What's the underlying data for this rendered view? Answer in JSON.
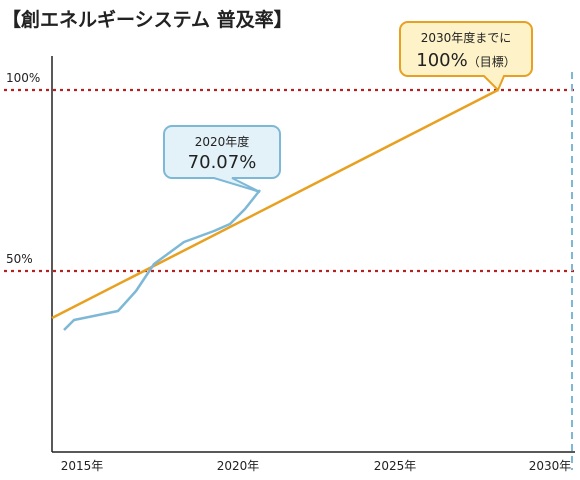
{
  "chart_data": {
    "type": "line",
    "title": "【創エネルギーシステム 普及率】",
    "xlabel": "",
    "ylabel": "",
    "xlim": [
      2015,
      2031
    ],
    "ylim": [
      0,
      120
    ],
    "x_ticks": [
      {
        "x": 2015,
        "label": "2015年"
      },
      {
        "x": 2020,
        "label": "2020年"
      },
      {
        "x": 2025,
        "label": "2025年"
      },
      {
        "x": 2030,
        "label": "2030年"
      }
    ],
    "y_reference_lines": [
      {
        "y": 100,
        "label": "100%"
      },
      {
        "y": 50,
        "label": "50%"
      }
    ],
    "target_year_line": 2030,
    "series": [
      {
        "color": "#7db8d6",
        "x": [
          2015.0,
          2015.2,
          2016.7,
          2017.2,
          2017.7,
          2018.5,
          2019.5,
          2020.0,
          2020.5,
          2020.7
        ],
        "y": [
          33,
          36,
          39,
          46,
          53,
          58,
          61,
          64,
          68,
          70.07
        ]
      },
      {
        "color": "#e8a020",
        "x": [
          2014.8,
          2029.8
        ],
        "y": [
          37,
          100
        ]
      }
    ],
    "annotations": [
      {
        "text_line1": "2020年度",
        "text_line2": "70.07%",
        "x": 2020.7,
        "y": 70.07,
        "fill": "#e3f2f9",
        "stroke": "#7db8d6"
      },
      {
        "text_line1": "2030年度までに",
        "text_line2_big": "100%",
        "text_line2_small": "（目標）",
        "x": 2029.8,
        "y": 100,
        "fill": "#fdf2c8",
        "stroke": "#e8a020"
      }
    ],
    "colors": {
      "axis": "#222222",
      "reference_line": "#b52020",
      "target_line": "#7db8d6"
    },
    "grid": false,
    "legend": "none"
  }
}
